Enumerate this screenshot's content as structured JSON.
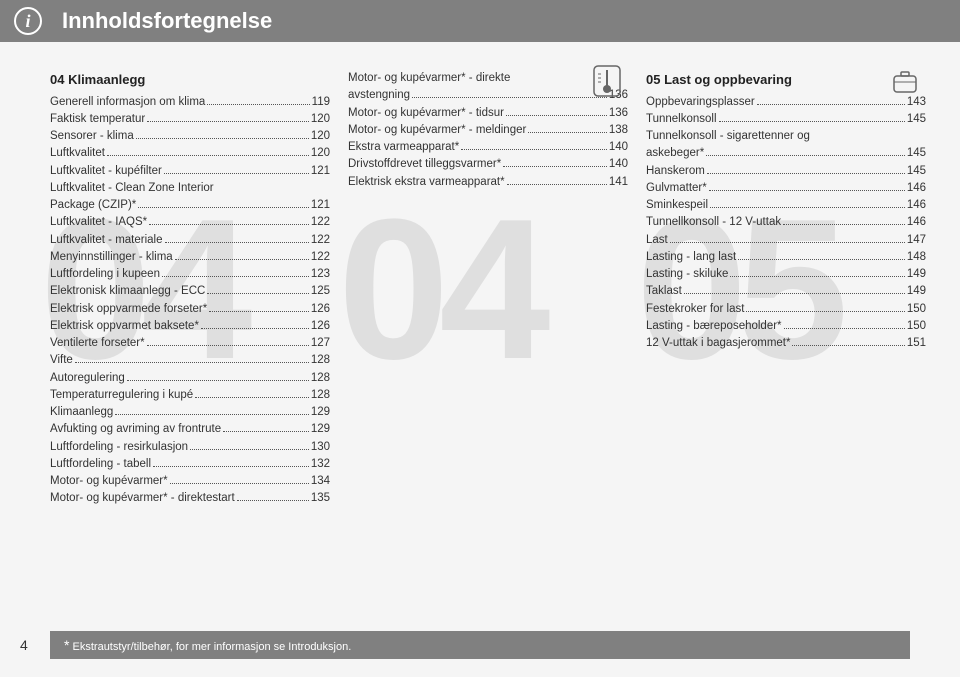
{
  "header": {
    "title": "Innholdsfortegnelse",
    "info_glyph": "i"
  },
  "watermarks": {
    "col1": "04",
    "col2": "04",
    "col3": "05"
  },
  "sections": {
    "s04": {
      "title": "04 Klimaanlegg"
    },
    "s05": {
      "title": "05 Last og oppbevaring"
    }
  },
  "col1": [
    {
      "label": "Generell informasjon om klima",
      "page": "119"
    },
    {
      "label": "Faktisk temperatur",
      "page": "120"
    },
    {
      "label": "Sensorer - klima",
      "page": "120"
    },
    {
      "label": "Luftkvalitet",
      "page": "120"
    },
    {
      "label": "Luftkvalitet - kupéfilter",
      "page": "121"
    },
    {
      "label": "Luftkvalitet - Clean Zone Interior Package (CZIP)*",
      "page": "121",
      "multi": true
    },
    {
      "label": "Luftkvalitet - IAQS*",
      "page": "122"
    },
    {
      "label": "Luftkvalitet - materiale",
      "page": "122"
    },
    {
      "label": "Menyinnstillinger - klima",
      "page": "122"
    },
    {
      "label": "Luftfordeling i kupeen",
      "page": "123"
    },
    {
      "label": "Elektronisk klimaanlegg - ECC",
      "page": "125"
    },
    {
      "label": "Elektrisk oppvarmede forseter*",
      "page": "126"
    },
    {
      "label": "Elektrisk oppvarmet baksete*",
      "page": "126"
    },
    {
      "label": "Ventilerte forseter*",
      "page": "127"
    },
    {
      "label": "Vifte",
      "page": "128"
    },
    {
      "label": "Autoregulering",
      "page": "128"
    },
    {
      "label": "Temperaturregulering i kupé",
      "page": "128"
    },
    {
      "label": "Klimaanlegg",
      "page": "129"
    },
    {
      "label": "Avfukting og avriming av frontrute",
      "page": "129"
    },
    {
      "label": "Luftfordeling - resirkulasjon",
      "page": "130"
    },
    {
      "label": "Luftfordeling - tabell",
      "page": "132"
    },
    {
      "label": "Motor- og kupévarmer*",
      "page": "134"
    },
    {
      "label": "Motor- og kupévarmer* - direktestart",
      "page": "135"
    }
  ],
  "col2": [
    {
      "label": "Motor- og kupévarmer* - direkte avstengning",
      "page": "136",
      "multi": true
    },
    {
      "label": "Motor- og kupévarmer* - tidsur",
      "page": "136"
    },
    {
      "label": "Motor- og kupévarmer* - meldinger",
      "page": "138"
    },
    {
      "label": "Ekstra varmeapparat*",
      "page": "140"
    },
    {
      "label": "Drivstoffdrevet tilleggsvarmer*",
      "page": "140"
    },
    {
      "label": "Elektrisk ekstra varmeapparat*",
      "page": "141"
    }
  ],
  "col3": [
    {
      "label": "Oppbevaringsplasser",
      "page": "143"
    },
    {
      "label": "Tunnelkonsoll",
      "page": "145"
    },
    {
      "label": "Tunnelkonsoll - sigarettenner og askebeger*",
      "page": "145",
      "multi": true
    },
    {
      "label": "Hanskerom",
      "page": "145"
    },
    {
      "label": "Gulvmatter*",
      "page": "146"
    },
    {
      "label": "Sminkespeil",
      "page": "146"
    },
    {
      "label": "Tunnellkonsoll - 12 V-uttak",
      "page": "146"
    },
    {
      "label": "Last",
      "page": "147"
    },
    {
      "label": "Lasting - lang last",
      "page": "148"
    },
    {
      "label": "Lasting - skiluke",
      "page": "149"
    },
    {
      "label": "Taklast",
      "page": "149"
    },
    {
      "label": "Festekroker for last",
      "page": "150"
    },
    {
      "label": "Lasting - bæreposeholder*",
      "page": "150"
    },
    {
      "label": "12 V-uttak i bagasjerommet*",
      "page": "151"
    }
  ],
  "footer": {
    "page_number": "4",
    "footnote": "Ekstrautstyr/tilbehør, for mer informasjon se Introduksjon.",
    "star": "*"
  },
  "colors": {
    "header_bg": "#808080",
    "page_bg": "#f5f5f5",
    "text": "#333333",
    "watermark": "rgba(160,160,160,0.25)"
  }
}
